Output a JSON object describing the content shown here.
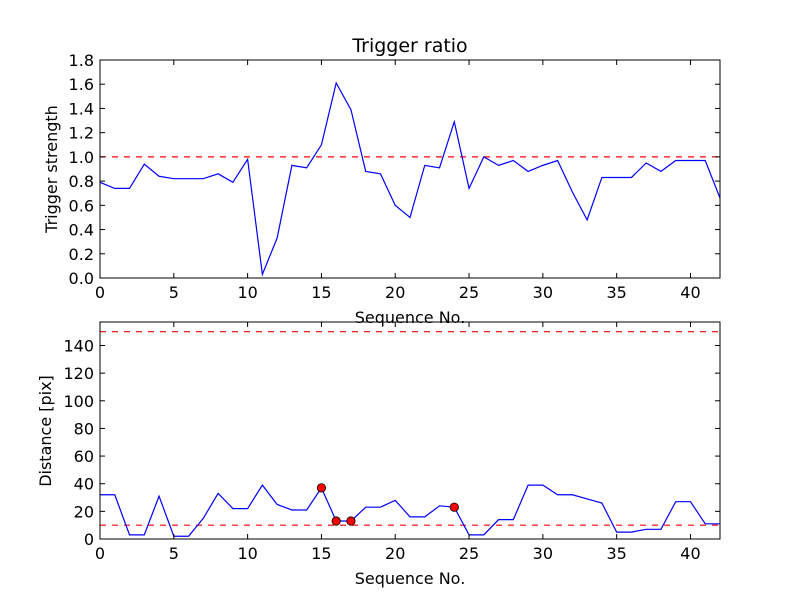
{
  "chart_data": [
    {
      "type": "line",
      "title": "Trigger ratio",
      "xlabel": "Sequence No.",
      "ylabel": "Trigger strength",
      "xlim": [
        0,
        42
      ],
      "ylim": [
        0,
        1.8
      ],
      "xticks": [
        0,
        5,
        10,
        15,
        20,
        25,
        30,
        35,
        40
      ],
      "yticks": [
        0.0,
        0.2,
        0.4,
        0.6,
        0.8,
        1.0,
        1.2,
        1.4,
        1.6,
        1.8
      ],
      "x": [
        0,
        1,
        2,
        3,
        4,
        5,
        6,
        7,
        8,
        9,
        10,
        11,
        12,
        13,
        14,
        15,
        16,
        17,
        18,
        19,
        20,
        21,
        22,
        23,
        24,
        25,
        26,
        27,
        28,
        29,
        30,
        31,
        32,
        33,
        34,
        35,
        36,
        37,
        38,
        39,
        40,
        41,
        42
      ],
      "series": [
        {
          "color": "#0000ff",
          "values": [
            0.79,
            0.74,
            0.74,
            0.94,
            0.84,
            0.82,
            0.82,
            0.82,
            0.86,
            0.79,
            0.98,
            0.03,
            0.33,
            0.93,
            0.91,
            1.1,
            1.61,
            1.39,
            0.88,
            0.86,
            0.6,
            0.5,
            0.93,
            0.91,
            1.29,
            0.74,
            1.0,
            0.93,
            0.97,
            0.88,
            0.93,
            0.97,
            0.71,
            0.48,
            0.83,
            0.83,
            0.83,
            0.95,
            0.88,
            0.97,
            0.97,
            0.97,
            0.66
          ]
        }
      ],
      "reference_lines": [
        {
          "y": 1.0,
          "color": "#ff0000",
          "style": "dashed"
        }
      ],
      "markers": [],
      "grid": false
    },
    {
      "type": "line",
      "title": "",
      "xlabel": "Sequence No.",
      "ylabel": "Distance [pix]",
      "xlim": [
        0,
        42
      ],
      "ylim": [
        0,
        157
      ],
      "xticks": [
        0,
        5,
        10,
        15,
        20,
        25,
        30,
        35,
        40
      ],
      "yticks": [
        0,
        20,
        40,
        60,
        80,
        100,
        120,
        140
      ],
      "x": [
        0,
        1,
        2,
        3,
        4,
        5,
        6,
        7,
        8,
        9,
        10,
        11,
        12,
        13,
        14,
        15,
        16,
        17,
        18,
        19,
        20,
        21,
        22,
        23,
        24,
        25,
        26,
        27,
        28,
        29,
        30,
        31,
        32,
        33,
        34,
        35,
        36,
        37,
        38,
        39,
        40,
        41,
        42
      ],
      "series": [
        {
          "color": "#0000ff",
          "values": [
            32,
            32,
            3,
            3,
            31,
            2,
            2,
            15,
            33,
            22,
            22,
            39,
            25,
            21,
            21,
            37,
            13,
            13,
            23,
            23,
            28,
            16,
            16,
            24,
            23,
            3,
            3,
            14,
            14,
            39,
            39,
            32,
            32,
            29,
            26,
            5,
            5,
            7,
            7,
            27,
            27,
            11,
            11
          ]
        }
      ],
      "reference_lines": [
        {
          "y": 150,
          "color": "#ff0000",
          "style": "dashed"
        },
        {
          "y": 10,
          "color": "#ff0000",
          "style": "dashed"
        }
      ],
      "markers": [
        {
          "x": 15,
          "y": 37,
          "color": "#ff0000"
        },
        {
          "x": 16,
          "y": 13,
          "color": "#ff0000"
        },
        {
          "x": 17,
          "y": 13,
          "color": "#ff0000"
        },
        {
          "x": 24,
          "y": 23,
          "color": "#ff0000"
        }
      ],
      "grid": false
    }
  ]
}
